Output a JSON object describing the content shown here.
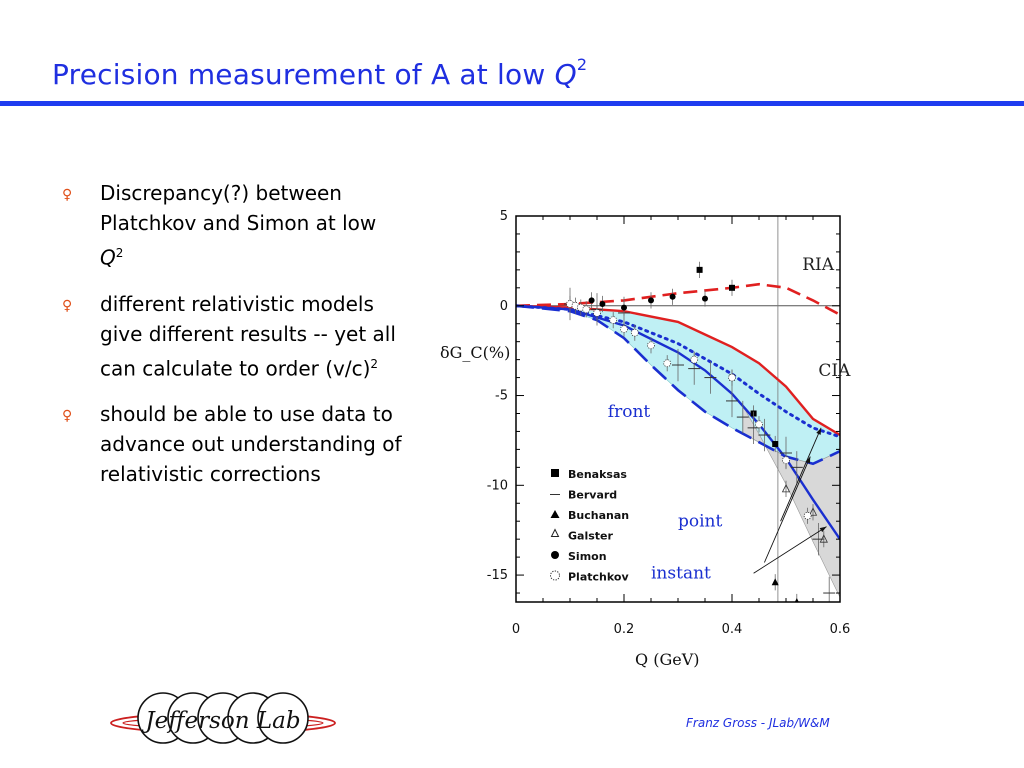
{
  "slide": {
    "title_main": "Precision measurement of A at low ",
    "title_q": "Q",
    "title_exp": "2",
    "footer": "Franz Gross - JLab/W&M",
    "logo_text": "Jefferson Lab"
  },
  "bullets": [
    {
      "text": "Discrepancy(?) between Platchkov and Simon at low ",
      "italic": "Q",
      "sup": "2"
    },
    {
      "text": "different relativistic models give different results -- yet all can calculate to order (v/c)",
      "italic": "",
      "sup": "2"
    },
    {
      "text": "should be able to use data to advance out understanding of relativistic corrections",
      "italic": "",
      "sup": ""
    }
  ],
  "colors": {
    "title": "#1f2fe0",
    "rule": "#1f3cf0",
    "bullet": "#e0501a",
    "ria": "#e02020",
    "nonrel": "#1a2fd0",
    "band_cyan": "#bff0f4",
    "band_grey": "#d8d8d8"
  },
  "chart_data": {
    "type": "line",
    "xlabel": "Q (GeV)",
    "ylabel": "δG_C(%)",
    "xlim": [
      0,
      0.6
    ],
    "ylim": [
      -16.5,
      5
    ],
    "xticks": [
      0,
      0.2,
      0.4,
      0.6
    ],
    "yticks": [
      5,
      0,
      -5,
      -10,
      -15
    ],
    "series": [
      {
        "name": "RIA",
        "style": "red-dashed",
        "x": [
          0,
          0.1,
          0.2,
          0.3,
          0.4,
          0.45,
          0.5,
          0.55,
          0.6
        ],
        "y": [
          0,
          0.1,
          0.3,
          0.7,
          1.0,
          1.2,
          1.0,
          0.3,
          -0.5
        ]
      },
      {
        "name": "CIA",
        "style": "red-solid",
        "x": [
          0,
          0.1,
          0.2,
          0.3,
          0.35,
          0.4,
          0.45,
          0.5,
          0.55,
          0.6
        ],
        "y": [
          0,
          -0.1,
          -0.3,
          -0.9,
          -1.6,
          -2.3,
          -3.2,
          -4.5,
          -6.3,
          -7.2
        ]
      },
      {
        "name": "front",
        "style": "blue-longdash",
        "x": [
          0,
          0.1,
          0.15,
          0.2,
          0.25,
          0.3,
          0.35,
          0.4,
          0.45,
          0.5,
          0.55,
          0.6
        ],
        "y": [
          0,
          -0.3,
          -0.8,
          -1.8,
          -3.3,
          -4.7,
          -5.9,
          -6.8,
          -7.6,
          -8.4,
          -8.8,
          -8.1
        ]
      },
      {
        "name": "point",
        "style": "blue-solid",
        "x": [
          0,
          0.1,
          0.2,
          0.3,
          0.35,
          0.4,
          0.45,
          0.5,
          0.55,
          0.6
        ],
        "y": [
          0,
          -0.2,
          -1.1,
          -2.6,
          -3.6,
          -4.9,
          -6.6,
          -8.5,
          -10.8,
          -13.0
        ]
      },
      {
        "name": "instant",
        "style": "blue-dotted",
        "x": [
          0,
          0.1,
          0.2,
          0.3,
          0.4,
          0.45,
          0.5,
          0.55,
          0.6
        ],
        "y": [
          0,
          -0.2,
          -0.9,
          -2.1,
          -3.8,
          -4.9,
          -5.9,
          -6.8,
          -7.3
        ]
      }
    ],
    "datasets": [
      {
        "name": "Benaksas",
        "marker": "filled-square",
        "points": [
          [
            0.34,
            2.0
          ],
          [
            0.4,
            1.0
          ],
          [
            0.4,
            -4.0
          ],
          [
            0.44,
            -6.0
          ],
          [
            0.48,
            -7.7
          ]
        ]
      },
      {
        "name": "Bervard",
        "marker": "dash",
        "points": [
          [
            0.1,
            0.1
          ],
          [
            0.15,
            -0.2
          ],
          [
            0.2,
            -0.4
          ],
          [
            0.3,
            -3.3
          ],
          [
            0.33,
            -3.5
          ],
          [
            0.36,
            -4.0
          ],
          [
            0.4,
            -5.3
          ],
          [
            0.42,
            -6.2
          ],
          [
            0.44,
            -6.8
          ],
          [
            0.46,
            -7.2
          ],
          [
            0.5,
            -8.2
          ],
          [
            0.52,
            -9.0
          ],
          [
            0.56,
            -13.0
          ],
          [
            0.58,
            -16.0
          ]
        ]
      },
      {
        "name": "Buchanan",
        "marker": "filled-triangle",
        "points": [
          [
            0.48,
            -15.4
          ],
          [
            0.52,
            -16.5
          ]
        ]
      },
      {
        "name": "Galster",
        "marker": "open-triangle",
        "points": [
          [
            0.5,
            -10.2
          ],
          [
            0.55,
            -11.5
          ],
          [
            0.57,
            -13.0
          ]
        ]
      },
      {
        "name": "Simon",
        "marker": "filled-circle",
        "points": [
          [
            0.14,
            0.3
          ],
          [
            0.16,
            0.1
          ],
          [
            0.2,
            -0.1
          ],
          [
            0.25,
            0.3
          ],
          [
            0.29,
            0.5
          ],
          [
            0.35,
            0.4
          ]
        ]
      },
      {
        "name": "Platchkov",
        "marker": "open-dotted-circle",
        "points": [
          [
            0.1,
            0.1
          ],
          [
            0.11,
            0.0
          ],
          [
            0.12,
            -0.1
          ],
          [
            0.13,
            -0.2
          ],
          [
            0.15,
            -0.4
          ],
          [
            0.18,
            -0.8
          ],
          [
            0.2,
            -1.3
          ],
          [
            0.22,
            -1.5
          ],
          [
            0.25,
            -2.2
          ],
          [
            0.28,
            -3.2
          ],
          [
            0.33,
            -3.0
          ],
          [
            0.4,
            -4.0
          ],
          [
            0.45,
            -6.6
          ],
          [
            0.5,
            -8.6
          ],
          [
            0.54,
            -11.7
          ]
        ]
      }
    ],
    "annotations": [
      "RIA",
      "CIA",
      "front",
      "point",
      "instant"
    ],
    "legend_position": "lower-left"
  }
}
